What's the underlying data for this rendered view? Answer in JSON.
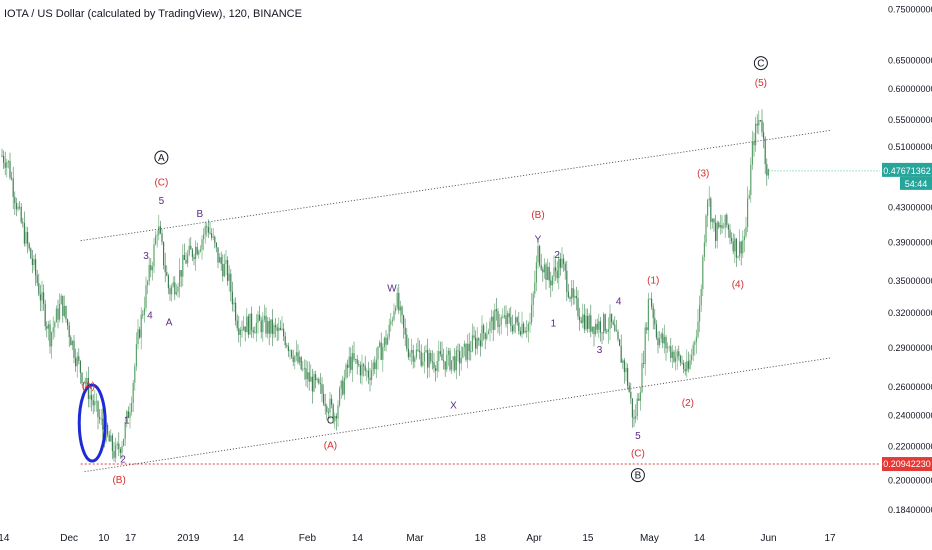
{
  "chart_header": {
    "title": "IOTA / US Dollar (calculated by TradingView), 120, BINANCE"
  },
  "price_badge": {
    "price": "0.47671362",
    "countdown": "54:44"
  },
  "support_badge": {
    "price": "0.20942230"
  },
  "colors": {
    "up": "#26a69a",
    "down": "#ef5350",
    "candle": "#4e9b64",
    "axis_text": "#131722",
    "wave_red": "#d32f2f",
    "wave_purple": "#5b2a86",
    "support_line": "#e53935",
    "highlight": "#1d2bd6"
  },
  "chart_data": {
    "type": "candlestick",
    "symbol": "IOTA / US Dollar",
    "interval": "120",
    "exchange": "BINANCE",
    "y_axis": {
      "scale": "log",
      "ticks": [
        "0.75000000",
        "0.65000000",
        "0.60000000",
        "0.55000000",
        "0.51000000",
        "0.43000000",
        "0.39000000",
        "0.35000000",
        "0.32000000",
        "0.29000000",
        "0.26000000",
        "0.24000000",
        "0.22000000",
        "0.20000000",
        "0.18400000"
      ],
      "ticks_values": [
        0.75,
        0.65,
        0.6,
        0.55,
        0.51,
        0.43,
        0.39,
        0.35,
        0.32,
        0.29,
        0.26,
        0.24,
        0.22,
        0.2,
        0.184
      ],
      "range": [
        0.179,
        0.77
      ]
    },
    "x_axis": {
      "ticks": [
        "14",
        "Dec",
        "10",
        "17",
        "2019",
        "14",
        "Feb",
        "14",
        "Mar",
        "18",
        "Apr",
        "15",
        "May",
        "14",
        "Jun",
        "17"
      ],
      "tick_dates": [
        "2018-11-14",
        "2018-12-01",
        "2018-12-10",
        "2018-12-17",
        "2019-01-01",
        "2019-01-14",
        "2019-02-01",
        "2019-02-14",
        "2019-03-01",
        "2019-03-18",
        "2019-04-01",
        "2019-04-15",
        "2019-05-01",
        "2019-05-14",
        "2019-06-01",
        "2019-06-17"
      ],
      "range": [
        "2018-11-13",
        "2019-06-30"
      ]
    },
    "price_path": [
      {
        "date": "2018-11-13",
        "price": 0.5
      },
      {
        "date": "2018-11-15",
        "price": 0.49
      },
      {
        "date": "2018-11-18",
        "price": 0.42
      },
      {
        "date": "2018-11-22",
        "price": 0.36
      },
      {
        "date": "2018-11-26",
        "price": 0.3
      },
      {
        "date": "2018-11-29",
        "price": 0.33
      },
      {
        "date": "2018-12-03",
        "price": 0.28
      },
      {
        "date": "2018-12-07",
        "price": 0.25
      },
      {
        "date": "2018-12-10",
        "price": 0.23
      },
      {
        "date": "2018-12-13",
        "price": 0.215
      },
      {
        "date": "2018-12-15",
        "price": 0.225
      },
      {
        "date": "2018-12-17",
        "price": 0.25
      },
      {
        "date": "2018-12-19",
        "price": 0.3
      },
      {
        "date": "2018-12-21",
        "price": 0.34
      },
      {
        "date": "2018-12-23",
        "price": 0.38
      },
      {
        "date": "2018-12-24",
        "price": 0.41
      },
      {
        "date": "2018-12-27",
        "price": 0.34
      },
      {
        "date": "2018-12-29",
        "price": 0.35
      },
      {
        "date": "2018-12-31",
        "price": 0.37
      },
      {
        "date": "2019-01-04",
        "price": 0.39
      },
      {
        "date": "2019-01-06",
        "price": 0.41
      },
      {
        "date": "2019-01-09",
        "price": 0.37
      },
      {
        "date": "2019-01-11",
        "price": 0.36
      },
      {
        "date": "2019-01-14",
        "price": 0.31
      },
      {
        "date": "2019-01-20",
        "price": 0.31
      },
      {
        "date": "2019-01-26",
        "price": 0.3
      },
      {
        "date": "2019-01-31",
        "price": 0.27
      },
      {
        "date": "2019-02-05",
        "price": 0.255
      },
      {
        "date": "2019-02-08",
        "price": 0.24
      },
      {
        "date": "2019-02-12",
        "price": 0.28
      },
      {
        "date": "2019-02-17",
        "price": 0.27
      },
      {
        "date": "2019-02-22",
        "price": 0.3
      },
      {
        "date": "2019-02-24",
        "price": 0.335
      },
      {
        "date": "2019-02-27",
        "price": 0.29
      },
      {
        "date": "2019-03-05",
        "price": 0.28
      },
      {
        "date": "2019-03-12",
        "price": 0.28
      },
      {
        "date": "2019-03-18",
        "price": 0.3
      },
      {
        "date": "2019-03-22",
        "price": 0.315
      },
      {
        "date": "2019-03-27",
        "price": 0.31
      },
      {
        "date": "2019-03-31",
        "price": 0.31
      },
      {
        "date": "2019-04-02",
        "price": 0.38
      },
      {
        "date": "2019-04-05",
        "price": 0.35
      },
      {
        "date": "2019-04-08",
        "price": 0.37
      },
      {
        "date": "2019-04-11",
        "price": 0.33
      },
      {
        "date": "2019-04-15",
        "price": 0.31
      },
      {
        "date": "2019-04-21",
        "price": 0.31
      },
      {
        "date": "2019-04-25",
        "price": 0.27
      },
      {
        "date": "2019-04-27",
        "price": 0.235
      },
      {
        "date": "2019-04-29",
        "price": 0.27
      },
      {
        "date": "2019-05-01",
        "price": 0.34
      },
      {
        "date": "2019-05-03",
        "price": 0.3
      },
      {
        "date": "2019-05-09",
        "price": 0.28
      },
      {
        "date": "2019-05-11",
        "price": 0.27
      },
      {
        "date": "2019-05-14",
        "price": 0.32
      },
      {
        "date": "2019-05-16",
        "price": 0.45
      },
      {
        "date": "2019-05-18",
        "price": 0.4
      },
      {
        "date": "2019-05-21",
        "price": 0.41
      },
      {
        "date": "2019-05-24",
        "price": 0.38
      },
      {
        "date": "2019-05-26",
        "price": 0.4
      },
      {
        "date": "2019-05-28",
        "price": 0.52
      },
      {
        "date": "2019-05-30",
        "price": 0.56
      },
      {
        "date": "2019-05-31",
        "price": 0.5
      },
      {
        "date": "2019-06-01",
        "price": 0.47
      }
    ],
    "channel_lines": [
      {
        "name": "upper",
        "from": {
          "date": "2018-12-04",
          "price": 0.392
        },
        "to": {
          "date": "2019-06-17",
          "price": 0.534
        }
      },
      {
        "name": "lower",
        "from": {
          "date": "2018-12-05",
          "price": 0.205
        },
        "to": {
          "date": "2019-06-17",
          "price": 0.282
        }
      }
    ],
    "horizontal_line": {
      "price": 0.2094223,
      "from": "2018-12-04"
    },
    "wave_labels": [
      {
        "text": "(A)",
        "date": "2018-12-06",
        "price": 0.261,
        "color": "red"
      },
      {
        "text": "(B)",
        "date": "2018-12-14",
        "price": 0.2005,
        "color": "red"
      },
      {
        "text": "2",
        "date": "2018-12-15",
        "price": 0.2125,
        "color": "purple"
      },
      {
        "text": "1",
        "date": "2018-12-16",
        "price": 0.237,
        "color": "purple"
      },
      {
        "text": "4",
        "date": "2018-12-22",
        "price": 0.318,
        "color": "purple"
      },
      {
        "text": "3",
        "date": "2018-12-21",
        "price": 0.376,
        "color": "purple"
      },
      {
        "text": "A",
        "date": "2018-12-27",
        "price": 0.312,
        "color": "purple"
      },
      {
        "text": "5",
        "date": "2018-12-25",
        "price": 0.439,
        "color": "purple"
      },
      {
        "text": "(C)",
        "date": "2018-12-25",
        "price": 0.462,
        "color": "red"
      },
      {
        "text": "A",
        "date": "2018-12-25",
        "price": 0.495,
        "color": "black",
        "circled": true
      },
      {
        "text": "B",
        "date": "2019-01-04",
        "price": 0.423,
        "color": "purple"
      },
      {
        "text": "W",
        "date": "2019-02-23",
        "price": 0.343,
        "color": "purple"
      },
      {
        "text": "C",
        "date": "2019-02-07",
        "price": 0.237,
        "color": "black"
      },
      {
        "text": "(A)",
        "date": "2019-02-07",
        "price": 0.221,
        "color": "red"
      },
      {
        "text": "X",
        "date": "2019-03-11",
        "price": 0.247,
        "color": "purple"
      },
      {
        "text": "(B)",
        "date": "2019-04-02",
        "price": 0.422,
        "color": "red"
      },
      {
        "text": "Y",
        "date": "2019-04-02",
        "price": 0.394,
        "color": "purple"
      },
      {
        "text": "2",
        "date": "2019-04-07",
        "price": 0.377,
        "color": "purple"
      },
      {
        "text": "1",
        "date": "2019-04-06",
        "price": 0.311,
        "color": "purple"
      },
      {
        "text": "3",
        "date": "2019-04-18",
        "price": 0.289,
        "color": "purple"
      },
      {
        "text": "4",
        "date": "2019-04-23",
        "price": 0.331,
        "color": "purple"
      },
      {
        "text": "5",
        "date": "2019-04-28",
        "price": 0.227,
        "color": "purple"
      },
      {
        "text": "(C)",
        "date": "2019-04-28",
        "price": 0.216,
        "color": "red"
      },
      {
        "text": "B",
        "date": "2019-04-28",
        "price": 0.203,
        "color": "black",
        "circled": true
      },
      {
        "text": "(1)",
        "date": "2019-05-02",
        "price": 0.351,
        "color": "red"
      },
      {
        "text": "(2)",
        "date": "2019-05-11",
        "price": 0.249,
        "color": "red"
      },
      {
        "text": "(3)",
        "date": "2019-05-15",
        "price": 0.474,
        "color": "red"
      },
      {
        "text": "(4)",
        "date": "2019-05-24",
        "price": 0.347,
        "color": "red"
      },
      {
        "text": "(5)",
        "date": "2019-05-30",
        "price": 0.611,
        "color": "red"
      },
      {
        "text": "C",
        "date": "2019-05-30",
        "price": 0.645,
        "color": "black",
        "circled": true
      }
    ],
    "highlight_ellipse": {
      "center": {
        "date": "2018-12-07",
        "price": 0.235
      },
      "note": "hand-drawn blue loop around the (A)-(B) chop"
    }
  }
}
